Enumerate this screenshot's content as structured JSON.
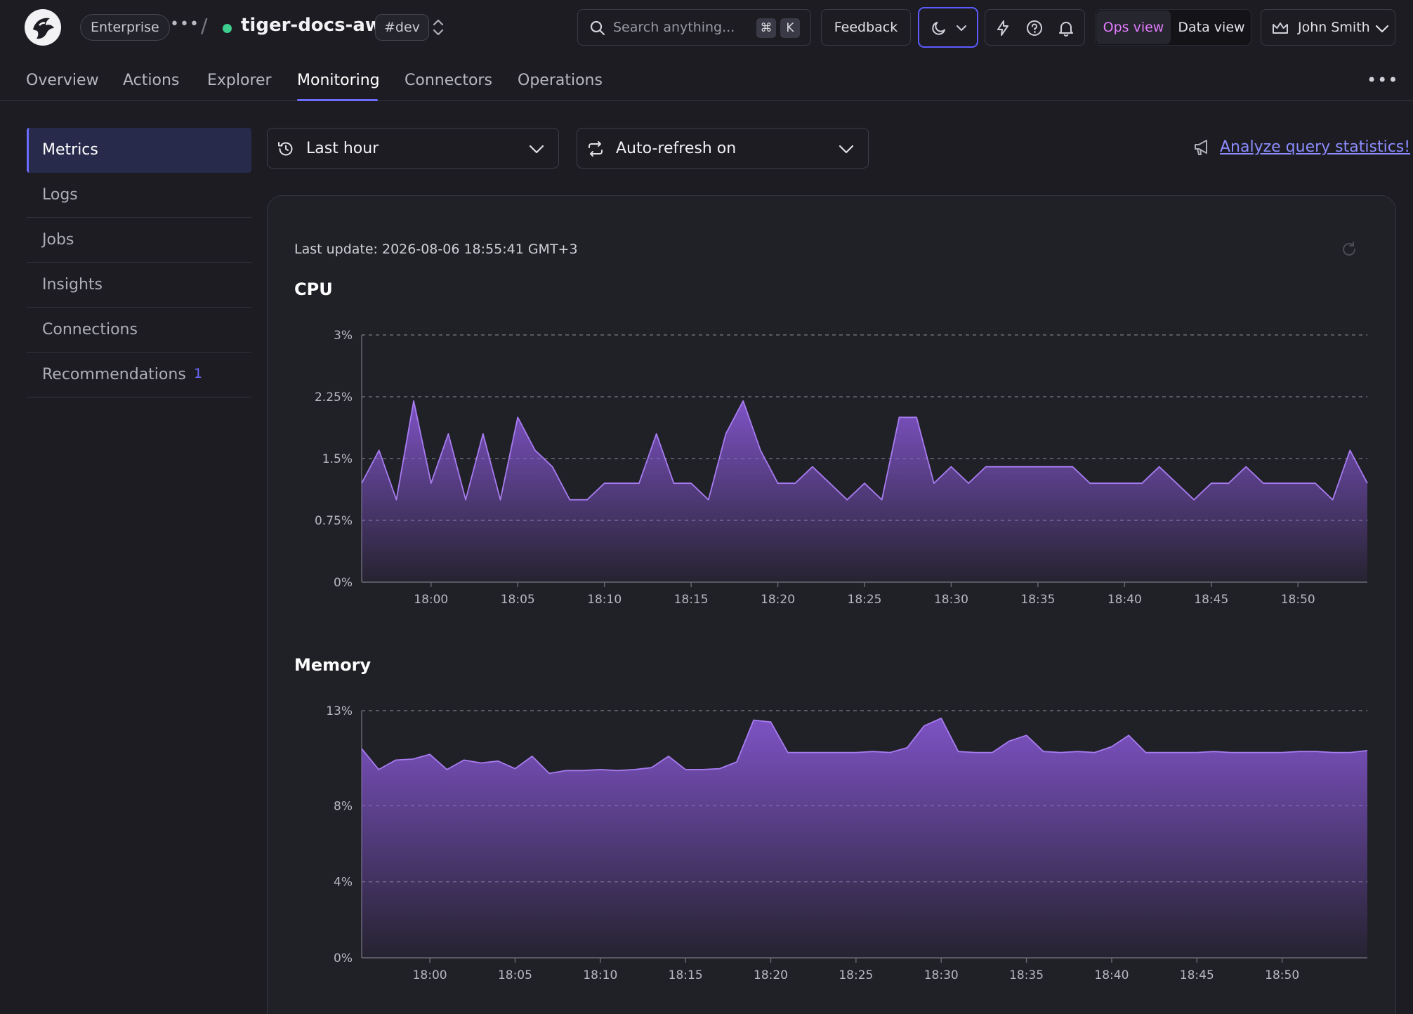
{
  "header": {
    "plan_badge": "Enterprise",
    "service_name": "tiger-docs-aws",
    "env_badge": "#dev",
    "search_placeholder": "Search anything...",
    "search_shortcut": [
      "⌘",
      "K"
    ],
    "feedback_label": "Feedback",
    "ops_view_label": "Ops view",
    "data_view_label": "Data view",
    "user_name": "John Smith",
    "accent_color": "#6c6cff",
    "status_color": "#3ecf8e"
  },
  "tabs": [
    {
      "label": "Overview"
    },
    {
      "label": "Actions"
    },
    {
      "label": "Explorer"
    },
    {
      "label": "Monitoring",
      "active": true
    },
    {
      "label": "Connectors"
    },
    {
      "label": "Operations"
    }
  ],
  "sidebar": {
    "items": [
      {
        "label": "Metrics",
        "active": true
      },
      {
        "label": "Logs"
      },
      {
        "label": "Jobs"
      },
      {
        "label": "Insights"
      },
      {
        "label": "Connections"
      },
      {
        "label": "Recommendations",
        "badge": "1"
      }
    ]
  },
  "controls": {
    "time_range": "Last hour",
    "auto_refresh": "Auto-refresh on",
    "analyze_link": "Analyze query statistics!"
  },
  "panel": {
    "last_update": "Last update: 2026-08-06 18:55:41 GMT+3"
  },
  "chart_data": [
    {
      "type": "area",
      "title": "CPU",
      "x_ticks": [
        "18:00",
        "18:05",
        "18:10",
        "18:15",
        "18:20",
        "18:25",
        "18:30",
        "18:35",
        "18:40",
        "18:45",
        "18:50"
      ],
      "y_ticks": [
        "0%",
        "0.75%",
        "1.5%",
        "2.25%",
        "3%"
      ],
      "ylim": [
        0,
        3
      ],
      "unit": "%",
      "x_start_minute": 56,
      "x_step_minutes": 1,
      "grid": true,
      "color": "#8e5be0",
      "values": [
        1.2,
        1.6,
        1.0,
        2.2,
        1.2,
        1.8,
        1.0,
        1.8,
        1.0,
        2.0,
        1.6,
        1.4,
        1.0,
        1.0,
        1.2,
        1.2,
        1.2,
        1.8,
        1.2,
        1.2,
        1.0,
        1.8,
        2.2,
        1.6,
        1.2,
        1.2,
        1.4,
        1.2,
        1.0,
        1.2,
        1.0,
        2.0,
        2.0,
        1.2,
        1.4,
        1.2,
        1.4,
        1.4,
        1.4,
        1.4,
        1.4,
        1.4,
        1.2,
        1.2,
        1.2,
        1.2,
        1.4,
        1.2,
        1.0,
        1.2,
        1.2,
        1.4,
        1.2,
        1.2,
        1.2,
        1.2,
        1.0,
        1.6,
        1.2
      ]
    },
    {
      "type": "area",
      "title": "Memory",
      "x_ticks": [
        "18:00",
        "18:05",
        "18:10",
        "18:15",
        "18:20",
        "18:25",
        "18:30",
        "18:35",
        "18:40",
        "18:45",
        "18:50"
      ],
      "y_ticks": [
        "0%",
        "4%",
        "8%",
        "13%"
      ],
      "ylim": [
        0,
        13
      ],
      "unit": "%",
      "x_start_minute": 56,
      "x_step_minutes": 1,
      "grid": true,
      "color": "#8e5be0",
      "values": [
        11.0,
        9.9,
        10.4,
        10.45,
        10.7,
        9.9,
        10.4,
        10.25,
        10.35,
        9.95,
        10.6,
        9.7,
        9.85,
        9.85,
        9.9,
        9.85,
        9.9,
        10.0,
        10.6,
        9.9,
        9.9,
        9.95,
        10.3,
        12.5,
        12.4,
        10.8,
        10.8,
        10.8,
        10.8,
        10.8,
        10.85,
        10.8,
        11.05,
        12.2,
        12.6,
        10.85,
        10.8,
        10.8,
        11.4,
        11.7,
        10.85,
        10.8,
        10.85,
        10.8,
        11.1,
        11.7,
        10.8,
        10.8,
        10.8,
        10.8,
        10.85,
        10.8,
        10.8,
        10.8,
        10.8,
        10.85,
        10.85,
        10.8,
        10.8,
        10.9
      ]
    }
  ]
}
